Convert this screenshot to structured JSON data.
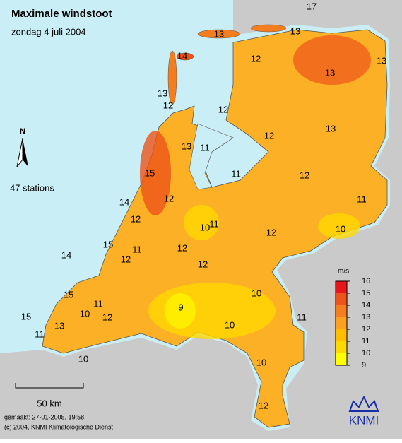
{
  "title": "Maximale windstoot",
  "subtitle": "zondag 4 juli 2004",
  "stations_note": "47 stations",
  "north": "N",
  "scale_bar": "50 km",
  "footer": [
    "gemaakt: 27-01-2005, 19:58",
    "(c) 2004, KNMI Klimatologische Dienst"
  ],
  "logo": "KNMI",
  "legend": {
    "unit": "m/s",
    "ticks": [
      9,
      10,
      11,
      12,
      13,
      14,
      15,
      16
    ],
    "colors": [
      "#ffff00",
      "#ffd800",
      "#ffbf00",
      "#fca11f",
      "#f47e1e",
      "#ec5419",
      "#e8161b"
    ]
  },
  "labels": [
    17,
    13,
    13,
    14,
    12,
    13,
    13,
    13,
    12,
    12,
    12,
    13,
    13,
    11,
    15,
    11,
    12,
    14,
    12,
    11,
    12,
    10,
    11,
    12,
    10,
    15,
    11,
    12,
    14,
    12,
    12,
    15,
    11,
    10,
    9,
    10,
    11,
    15,
    12,
    13,
    10,
    11,
    10,
    10,
    12
  ]
}
